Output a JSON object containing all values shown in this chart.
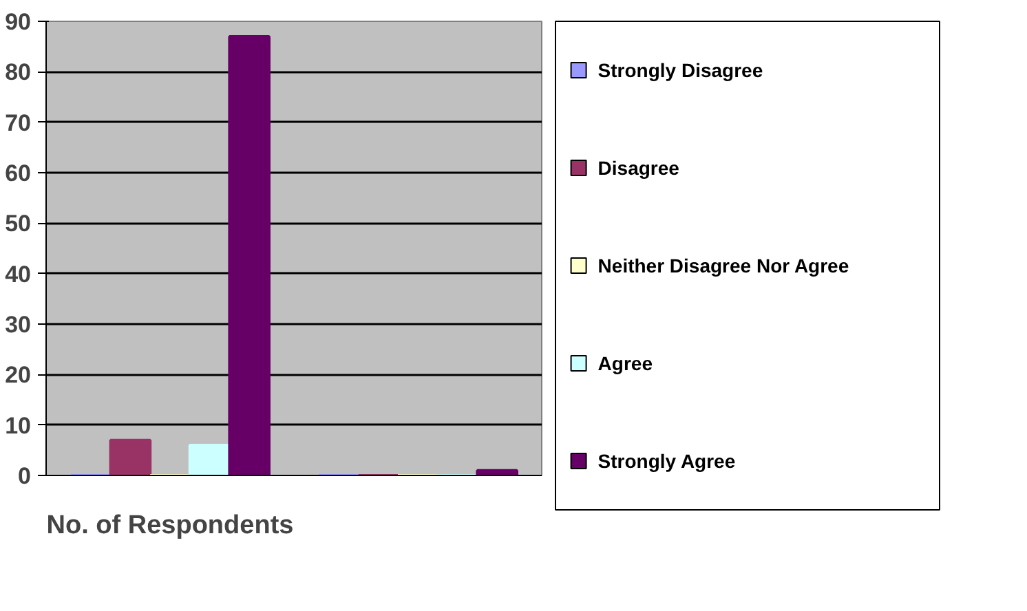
{
  "chart_data": {
    "type": "bar",
    "categories": [
      "No. of Respondents",
      null
    ],
    "series": [
      {
        "name": "Strongly Disagree",
        "color": "#9999ff",
        "values": [
          0,
          0
        ]
      },
      {
        "name": "Disagree",
        "color": "#993366",
        "values": [
          7,
          0
        ]
      },
      {
        "name": "Neither Disagree Nor Agree",
        "color": "#ffffcc",
        "values": [
          0,
          0
        ]
      },
      {
        "name": "Agree",
        "color": "#ccffff",
        "values": [
          6,
          0
        ]
      },
      {
        "name": "Strongly Agree",
        "color": "#660066",
        "values": [
          87,
          1
        ]
      }
    ],
    "ylim": [
      0,
      90
    ],
    "yticks": [
      0,
      10,
      20,
      30,
      40,
      50,
      60,
      70,
      80,
      90
    ],
    "grid": "y",
    "legend": "right"
  }
}
